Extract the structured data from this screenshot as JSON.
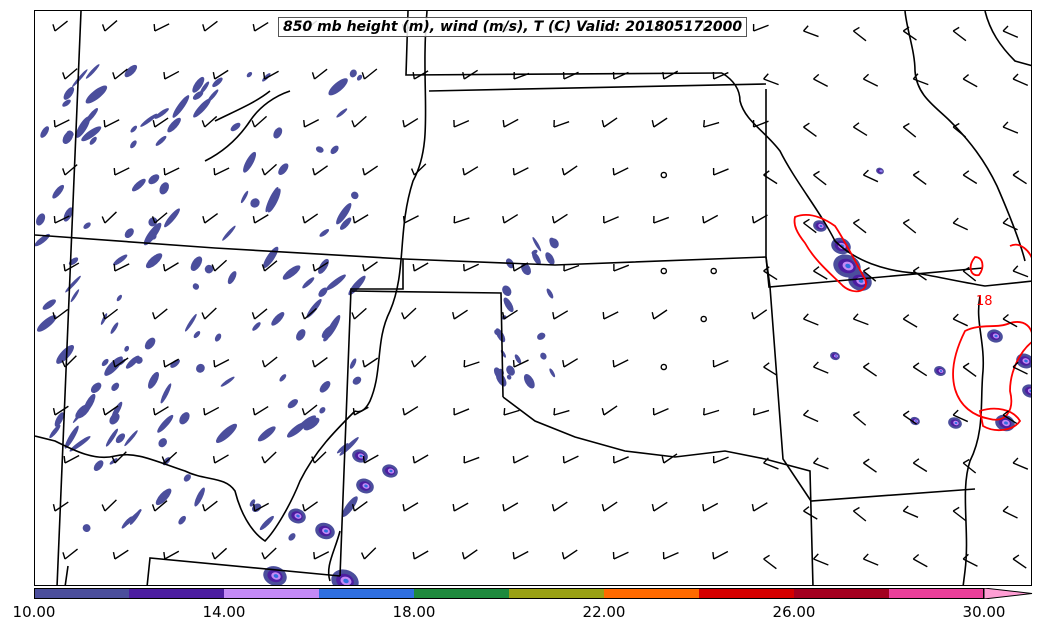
{
  "title": "850 mb height (m), wind (m/s), T (C) Valid: 201805172000",
  "colorbar": {
    "colors": [
      "#4b4e9c",
      "#4c1da0",
      "#c48af6",
      "#2f6fe0",
      "#1e8a3d",
      "#9aa114",
      "#ff6a00",
      "#d50000",
      "#a3001f",
      "#ea3f9a",
      "#ff9ed4"
    ],
    "ticks": [
      "10.00",
      "14.00",
      "18.00",
      "22.00",
      "26.00",
      "30.00"
    ],
    "min": 10,
    "max": 30
  },
  "contour_label": "18",
  "colors": {
    "borders": "#000000",
    "temperature_contour": "#ff0000",
    "shading_base": "#4b4e9c"
  }
}
